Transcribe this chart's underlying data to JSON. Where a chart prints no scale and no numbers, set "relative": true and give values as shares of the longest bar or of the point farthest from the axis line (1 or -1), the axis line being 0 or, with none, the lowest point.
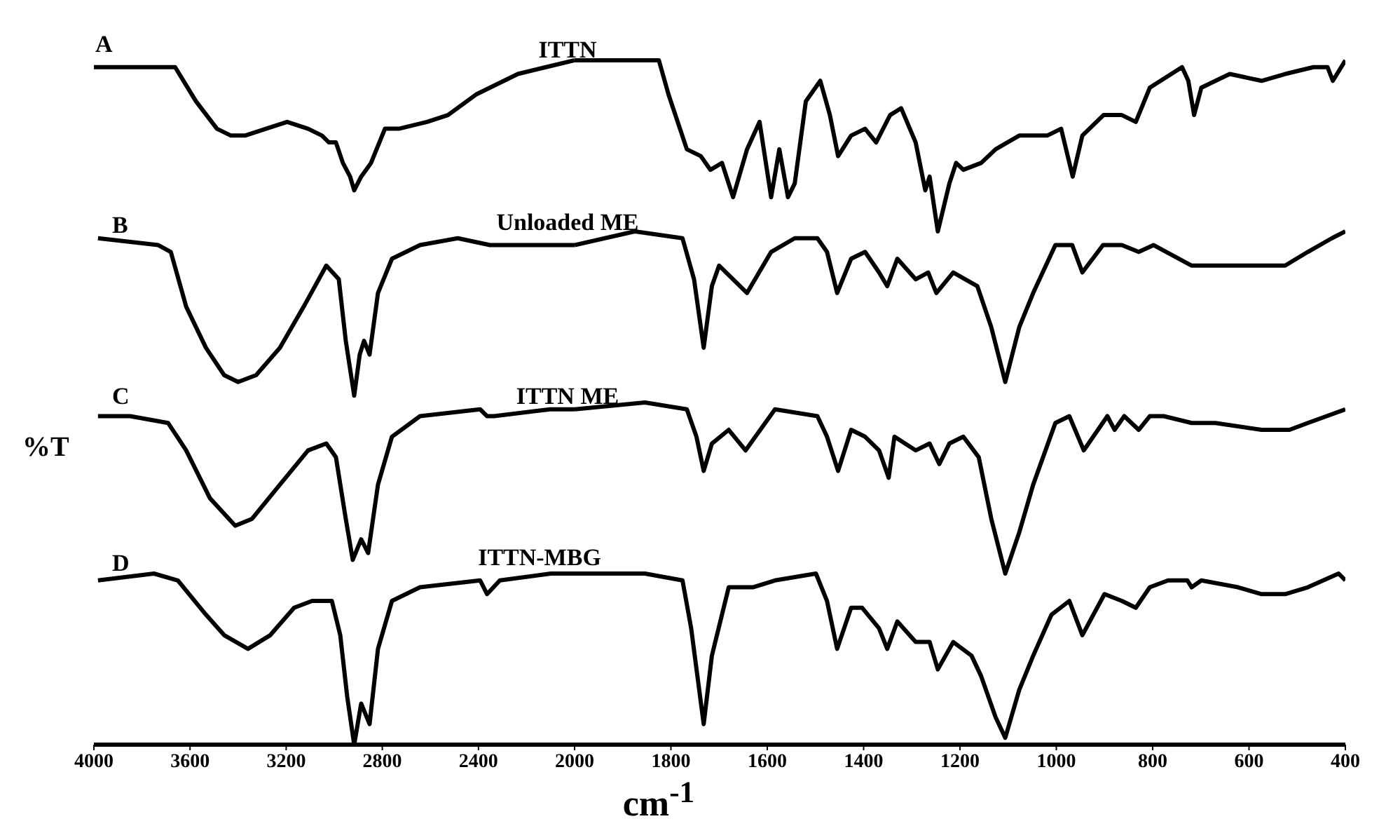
{
  "chart_data": [
    {
      "type": "line",
      "relative": true,
      "ylabel": "%T",
      "xlim": [
        4000,
        2000
      ],
      "xticks": [
        4000,
        3600,
        3200,
        2800,
        2400
      ],
      "annotations": [
        "A",
        "B",
        "C",
        "D"
      ],
      "series": [
        {
          "name": "ITTN",
          "color": "#000000",
          "x": [
            4000,
            3720,
            3662,
            3575,
            3488,
            3430,
            3371,
            3284,
            3196,
            3109,
            3051,
            3022,
            2993,
            2964,
            2934,
            2917,
            2888,
            2847,
            2789,
            2731,
            2614,
            2527,
            2410,
            2236,
            2119,
            2000
          ],
          "values": [
            0.99,
            0.99,
            0.99,
            0.94,
            0.9,
            0.89,
            0.89,
            0.9,
            0.91,
            0.9,
            0.89,
            0.88,
            0.88,
            0.85,
            0.83,
            0.81,
            0.83,
            0.85,
            0.9,
            0.9,
            0.91,
            0.92,
            0.95,
            0.98,
            0.99,
            1.0
          ]
        },
        {
          "name": "Unloaded ME",
          "color": "#000000",
          "x": [
            3983,
            3732,
            3680,
            3616,
            3534,
            3458,
            3400,
            3325,
            3226,
            3127,
            3033,
            2981,
            2952,
            2917,
            2894,
            2876,
            2853,
            2818,
            2760,
            2643,
            2486,
            2352,
            2195,
            2000
          ],
          "values": [
            0.74,
            0.73,
            0.72,
            0.64,
            0.58,
            0.54,
            0.53,
            0.54,
            0.58,
            0.64,
            0.7,
            0.68,
            0.59,
            0.51,
            0.57,
            0.59,
            0.57,
            0.66,
            0.71,
            0.73,
            0.74,
            0.73,
            0.73,
            0.73
          ]
        },
        {
          "name": "ITTN ME",
          "color": "#000000",
          "x": [
            3983,
            3849,
            3691,
            3616,
            3517,
            3412,
            3342,
            3226,
            3109,
            3033,
            2993,
            2952,
            2923,
            2888,
            2859,
            2818,
            2760,
            2643,
            2393,
            2364,
            2335,
            2102,
            2000
          ],
          "values": [
            0.48,
            0.48,
            0.47,
            0.43,
            0.36,
            0.32,
            0.33,
            0.38,
            0.43,
            0.44,
            0.42,
            0.33,
            0.27,
            0.3,
            0.28,
            0.38,
            0.45,
            0.48,
            0.49,
            0.48,
            0.48,
            0.49,
            0.49
          ]
        },
        {
          "name": "ITTN-MBG",
          "color": "#000000",
          "x": [
            3983,
            3750,
            3651,
            3534,
            3458,
            3359,
            3266,
            3167,
            3092,
            3010,
            2975,
            2946,
            2917,
            2888,
            2853,
            2818,
            2760,
            2643,
            2393,
            2364,
            2311,
            2099,
            2000
          ],
          "values": [
            0.24,
            0.25,
            0.24,
            0.19,
            0.16,
            0.14,
            0.16,
            0.2,
            0.21,
            0.21,
            0.16,
            0.07,
            0.0,
            0.06,
            0.03,
            0.14,
            0.21,
            0.23,
            0.24,
            0.22,
            0.24,
            0.25,
            0.25
          ]
        }
      ]
    },
    {
      "type": "line",
      "relative": true,
      "xlabel": "cm$^{-1}$",
      "xlim": [
        2000,
        400
      ],
      "xticks": [
        2000,
        1800,
        1600,
        1400,
        1200,
        1000,
        800,
        600,
        400
      ],
      "series": [
        {
          "color": "#000000",
          "x": [
            2000,
            1971,
            1884,
            1825,
            1805,
            1767,
            1738,
            1718,
            1694,
            1671,
            1642,
            1616,
            1592,
            1575,
            1557,
            1543,
            1520,
            1490,
            1470,
            1453,
            1426,
            1397,
            1374,
            1345,
            1322,
            1292,
            1272,
            1263,
            1246,
            1222,
            1208,
            1193,
            1156,
            1126,
            1077,
            1019,
            990,
            966,
            946,
            902,
            864,
            835,
            806,
            739,
            726,
            714,
            699,
            640,
            574,
            525,
            466,
            437,
            426,
            400
          ],
          "values": [
            1.0,
            1.0,
            1.0,
            1.0,
            0.95,
            0.87,
            0.86,
            0.84,
            0.85,
            0.8,
            0.87,
            0.91,
            0.8,
            0.87,
            0.8,
            0.82,
            0.94,
            0.97,
            0.92,
            0.86,
            0.89,
            0.9,
            0.88,
            0.92,
            0.93,
            0.88,
            0.81,
            0.83,
            0.75,
            0.82,
            0.85,
            0.84,
            0.85,
            0.87,
            0.89,
            0.89,
            0.9,
            0.83,
            0.89,
            0.92,
            0.92,
            0.91,
            0.96,
            0.99,
            0.97,
            0.92,
            0.96,
            0.98,
            0.97,
            0.98,
            0.99,
            0.99,
            0.97,
            1.0
          ]
        },
        {
          "color": "#000000",
          "x": [
            2000,
            1875,
            1776,
            1752,
            1732,
            1715,
            1700,
            1642,
            1592,
            1543,
            1496,
            1476,
            1455,
            1426,
            1397,
            1368,
            1351,
            1330,
            1292,
            1266,
            1249,
            1214,
            1164,
            1135,
            1106,
            1077,
            1048,
            1002,
            967,
            946,
            903,
            864,
            829,
            798,
            719,
            670,
            574,
            525,
            478,
            428,
            400
          ],
          "values": [
            0.73,
            0.75,
            0.74,
            0.68,
            0.58,
            0.67,
            0.7,
            0.66,
            0.72,
            0.74,
            0.74,
            0.72,
            0.66,
            0.71,
            0.72,
            0.69,
            0.67,
            0.71,
            0.68,
            0.69,
            0.66,
            0.69,
            0.67,
            0.61,
            0.53,
            0.61,
            0.66,
            0.73,
            0.73,
            0.69,
            0.73,
            0.73,
            0.72,
            0.73,
            0.7,
            0.7,
            0.7,
            0.7,
            0.72,
            0.74,
            0.75
          ]
        },
        {
          "color": "#000000",
          "x": [
            2000,
            1854,
            1767,
            1747,
            1732,
            1715,
            1680,
            1645,
            1584,
            1496,
            1476,
            1453,
            1426,
            1397,
            1368,
            1348,
            1336,
            1292,
            1263,
            1243,
            1222,
            1193,
            1161,
            1135,
            1106,
            1077,
            1048,
            1002,
            973,
            943,
            894,
            879,
            859,
            829,
            806,
            777,
            719,
            670,
            574,
            516,
            478,
            400
          ],
          "values": [
            0.49,
            0.5,
            0.49,
            0.45,
            0.4,
            0.44,
            0.46,
            0.43,
            0.49,
            0.48,
            0.45,
            0.4,
            0.46,
            0.45,
            0.43,
            0.39,
            0.45,
            0.43,
            0.44,
            0.41,
            0.44,
            0.45,
            0.42,
            0.33,
            0.25,
            0.31,
            0.38,
            0.47,
            0.48,
            0.43,
            0.48,
            0.46,
            0.48,
            0.46,
            0.48,
            0.48,
            0.47,
            0.47,
            0.46,
            0.46,
            0.47,
            0.49
          ]
        },
        {
          "color": "#000000",
          "x": [
            2000,
            1854,
            1776,
            1758,
            1732,
            1715,
            1680,
            1630,
            1584,
            1499,
            1476,
            1455,
            1426,
            1403,
            1368,
            1351,
            1330,
            1292,
            1263,
            1246,
            1214,
            1176,
            1156,
            1126,
            1106,
            1077,
            1048,
            1010,
            973,
            946,
            900,
            864,
            835,
            806,
            768,
            728,
            719,
            699,
            623,
            574,
            525,
            478,
            414,
            400
          ],
          "values": [
            0.25,
            0.25,
            0.24,
            0.17,
            0.03,
            0.13,
            0.23,
            0.23,
            0.24,
            0.25,
            0.21,
            0.14,
            0.2,
            0.2,
            0.17,
            0.14,
            0.18,
            0.15,
            0.15,
            0.11,
            0.15,
            0.13,
            0.1,
            0.04,
            0.01,
            0.08,
            0.13,
            0.19,
            0.21,
            0.16,
            0.22,
            0.21,
            0.2,
            0.23,
            0.24,
            0.24,
            0.23,
            0.24,
            0.23,
            0.22,
            0.22,
            0.23,
            0.25,
            0.24
          ]
        }
      ]
    }
  ]
}
